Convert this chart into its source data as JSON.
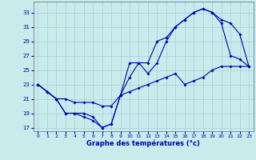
{
  "xlabel": "Graphe des températures (°c)",
  "xlim": [
    -0.5,
    23.5
  ],
  "ylim": [
    16.5,
    34.5
  ],
  "yticks": [
    17,
    19,
    21,
    23,
    25,
    27,
    29,
    31,
    33
  ],
  "xticks": [
    0,
    1,
    2,
    3,
    4,
    5,
    6,
    7,
    8,
    9,
    10,
    11,
    12,
    13,
    14,
    15,
    16,
    17,
    18,
    19,
    20,
    21,
    22,
    23
  ],
  "background_color": "#c8ecec",
  "grid_color": "#b0c8d8",
  "line_color": "#0000aa",
  "line1_x": [
    0,
    1,
    2,
    3,
    4,
    5,
    6,
    7,
    8,
    9,
    10,
    11,
    12,
    13,
    14,
    15,
    16,
    17,
    18,
    19,
    20,
    21,
    22,
    23
  ],
  "line1_y": [
    23,
    22,
    21,
    19,
    19,
    19,
    18.5,
    17,
    17.5,
    21.5,
    26,
    26,
    24.5,
    26,
    29,
    31,
    32,
    33,
    33.5,
    33,
    32,
    31.5,
    30,
    25.5
  ],
  "line2_x": [
    0,
    1,
    2,
    3,
    4,
    5,
    6,
    7,
    8,
    9,
    10,
    11,
    12,
    13,
    14,
    15,
    16,
    17,
    18,
    19,
    20,
    21,
    22,
    23
  ],
  "line2_y": [
    23,
    22,
    21,
    21,
    20.5,
    20.5,
    20.5,
    20,
    20,
    21.5,
    22,
    22.5,
    23,
    23.5,
    24,
    24.5,
    23,
    23.5,
    24,
    25,
    25.5,
    25.5,
    25.5,
    25.5
  ],
  "line3_x": [
    0,
    1,
    2,
    3,
    4,
    5,
    6,
    7,
    8,
    9,
    10,
    11,
    12,
    13,
    14,
    15,
    16,
    17,
    18,
    19,
    20,
    21,
    22,
    23
  ],
  "line3_y": [
    23,
    22,
    21,
    19,
    19,
    18.5,
    18,
    17,
    17.5,
    21.5,
    24,
    26,
    26,
    29,
    29.5,
    31,
    32,
    33,
    33.5,
    33,
    31.5,
    27,
    26.5,
    25.5
  ]
}
